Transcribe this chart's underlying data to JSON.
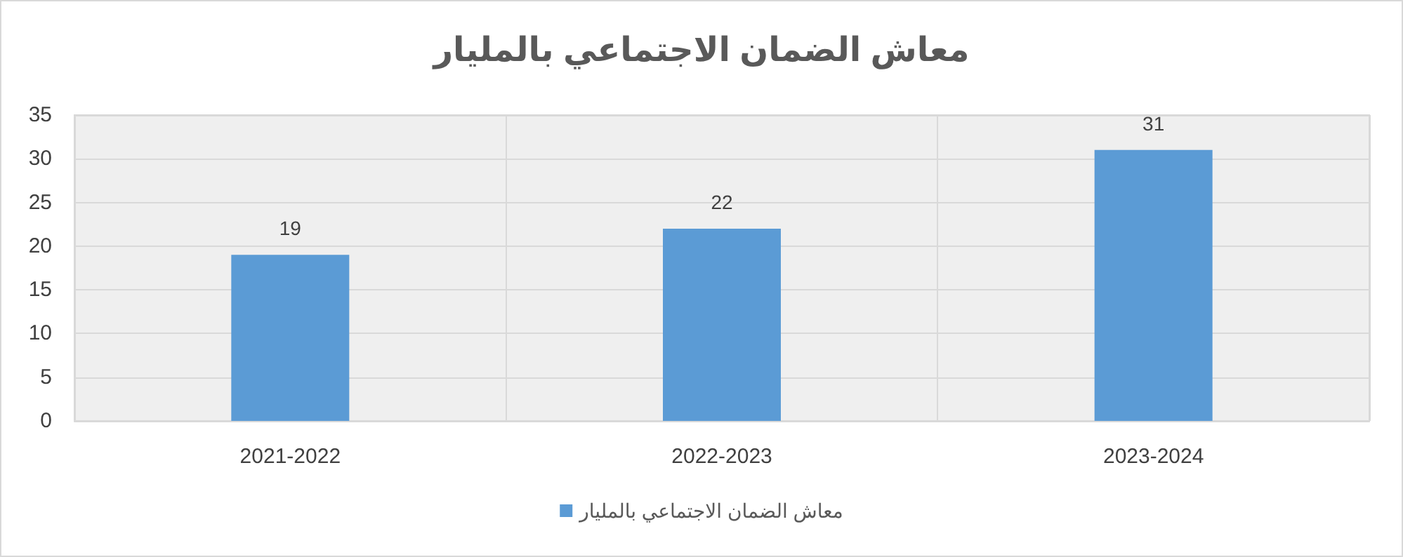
{
  "chart_data": {
    "type": "bar",
    "title": "معاش الضمان الاجتماعي بالمليار",
    "categories": [
      "2021-2022",
      "2022-2023",
      "2023-2024"
    ],
    "series": [
      {
        "name": "معاش الضمان الاجتماعي بالمليار",
        "color": "#5b9bd5",
        "values": [
          19,
          22,
          31
        ]
      }
    ],
    "ylim": [
      0,
      35
    ],
    "yticks": [
      0,
      5,
      10,
      15,
      20,
      25,
      30,
      35
    ],
    "grid": true,
    "legend": "bottom",
    "data_labels": true
  }
}
